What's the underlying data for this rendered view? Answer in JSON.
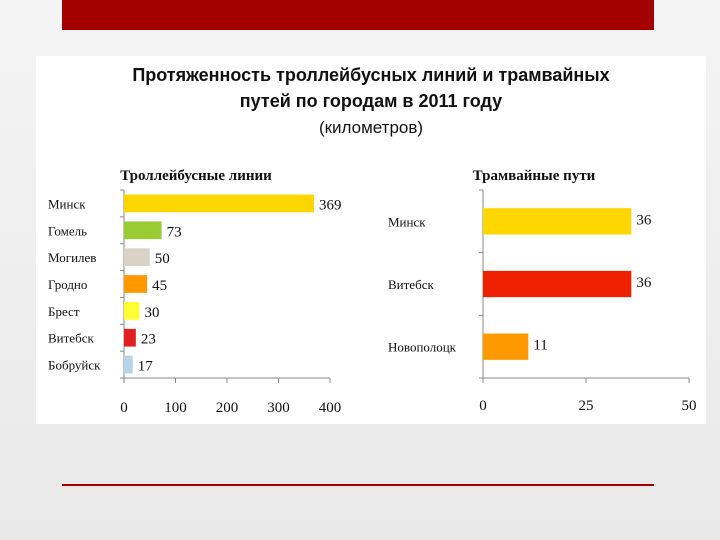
{
  "page": {
    "title_line1": "Протяженность троллейбусных линий и трамвайных",
    "title_line2": "путей по городам в 2011 году",
    "subtitle": "(километров)"
  },
  "colors": {
    "top_band": "#a50000",
    "bottom_rule": "#a50000"
  },
  "chart_data": [
    {
      "type": "bar",
      "orientation": "horizontal",
      "title": "Троллейбусные линии",
      "categories": [
        "Минск",
        "Гомель",
        "Могилев",
        "Гродно",
        "Брест",
        "Витебск",
        "Бобруйск"
      ],
      "values": [
        369,
        73,
        50,
        45,
        30,
        23,
        17
      ],
      "colors": [
        "#ffd700",
        "#99cc33",
        "#d9d2c5",
        "#ff9900",
        "#ffff33",
        "#e02020",
        "#b8d4ea"
      ],
      "xlim": [
        0,
        400
      ],
      "xticks": [
        0,
        100,
        200,
        300,
        400
      ],
      "grid": false,
      "legend": "none"
    },
    {
      "type": "bar",
      "orientation": "horizontal",
      "title": "Трамвайные пути",
      "categories": [
        "Минск",
        "Витебск",
        "Новополоцк"
      ],
      "values": [
        36,
        36,
        11
      ],
      "colors": [
        "#ffd700",
        "#ee2200",
        "#ff9900"
      ],
      "xlim": [
        0,
        50
      ],
      "xticks": [
        0,
        25,
        50
      ],
      "grid": false,
      "legend": "none"
    }
  ]
}
